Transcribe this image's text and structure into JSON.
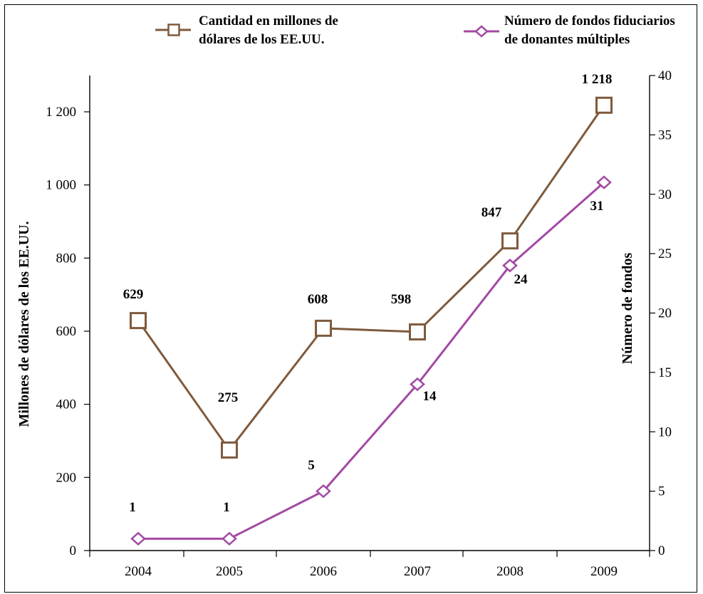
{
  "chart_data": {
    "type": "line",
    "title": "",
    "x": [
      "2004",
      "2005",
      "2006",
      "2007",
      "2008",
      "2009"
    ],
    "xlabel": "",
    "ylabel_left": "Millones de dólares de los EE.UU.",
    "ylabel_right": "Número de fondos",
    "ylim_left": [
      0,
      1300
    ],
    "ylim_right": [
      0,
      40
    ],
    "yticks_left": [
      "0",
      "200",
      "400",
      "600",
      "800",
      "1 000",
      "1 200"
    ],
    "yticks_right": [
      "0",
      "5",
      "10",
      "15",
      "20",
      "25",
      "30",
      "35",
      "40"
    ],
    "grid": false,
    "legend_position": "top",
    "series": [
      {
        "name": "Cantidad en millones de dólares de los EE.UU.",
        "legend_lines": [
          "Cantidad en millones de",
          "dólares de los EE.UU."
        ],
        "axis": "left",
        "marker": "square",
        "color": "#7f5a3c",
        "values": [
          629,
          275,
          608,
          598,
          847,
          1218
        ],
        "labels": [
          "629",
          "275",
          "608",
          "598",
          "847",
          "1 218"
        ]
      },
      {
        "name": "Número de fondos fiduciarios de donantes múltiples",
        "legend_lines": [
          "Número de fondos fiduciarios",
          "de donantes múltiples"
        ],
        "axis": "right",
        "marker": "diamond",
        "color": "#a349a4",
        "values": [
          1,
          1,
          5,
          14,
          24,
          31
        ],
        "labels": [
          "1",
          "1",
          "5",
          "14",
          "24",
          "31"
        ]
      }
    ]
  }
}
